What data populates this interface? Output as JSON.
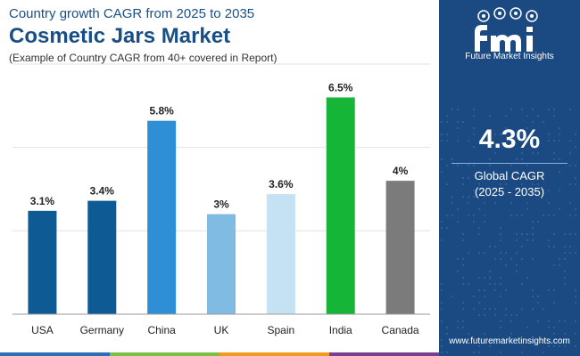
{
  "header": {
    "subtitle": "Country growth CAGR from 2025 to 2035",
    "title": "Cosmetic Jars Market",
    "note": "(Example of Country CAGR from 40+ covered in Report)"
  },
  "chart_data": {
    "type": "bar",
    "title": "Cosmetic Jars Market",
    "subtitle": "Country growth CAGR from 2025 to 2035",
    "categories": [
      "USA",
      "Germany",
      "China",
      "UK",
      "Spain",
      "India",
      "Canada"
    ],
    "values": [
      3.1,
      3.4,
      5.8,
      3.0,
      3.6,
      6.5,
      4.0
    ],
    "value_labels": [
      "3.1%",
      "3.4%",
      "5.8%",
      "3%",
      "3.6%",
      "6.5%",
      "4%"
    ],
    "colors": [
      "#0d5a94",
      "#0d5a94",
      "#2f8fd6",
      "#7fbbe3",
      "#c4e2f4",
      "#15b637",
      "#7b7b7b"
    ],
    "unit": "%",
    "xlabel": "",
    "ylabel": "",
    "ylim": [
      0,
      7.5
    ],
    "grid": true
  },
  "side_panel": {
    "logo_text": "Future Market Insights",
    "cagr_value": "4.3%",
    "cagr_label_1": "Global CAGR",
    "cagr_label_2": "(2025 - 2035)",
    "website": "www.futuremarketinsights.com"
  },
  "colors": {
    "panel": "#1b4a82",
    "title": "#1a4f86",
    "grid": "#e2e2e2",
    "footer": [
      "#2d6fb7",
      "#7cc043",
      "#f29a1f",
      "#7a3d91"
    ]
  }
}
